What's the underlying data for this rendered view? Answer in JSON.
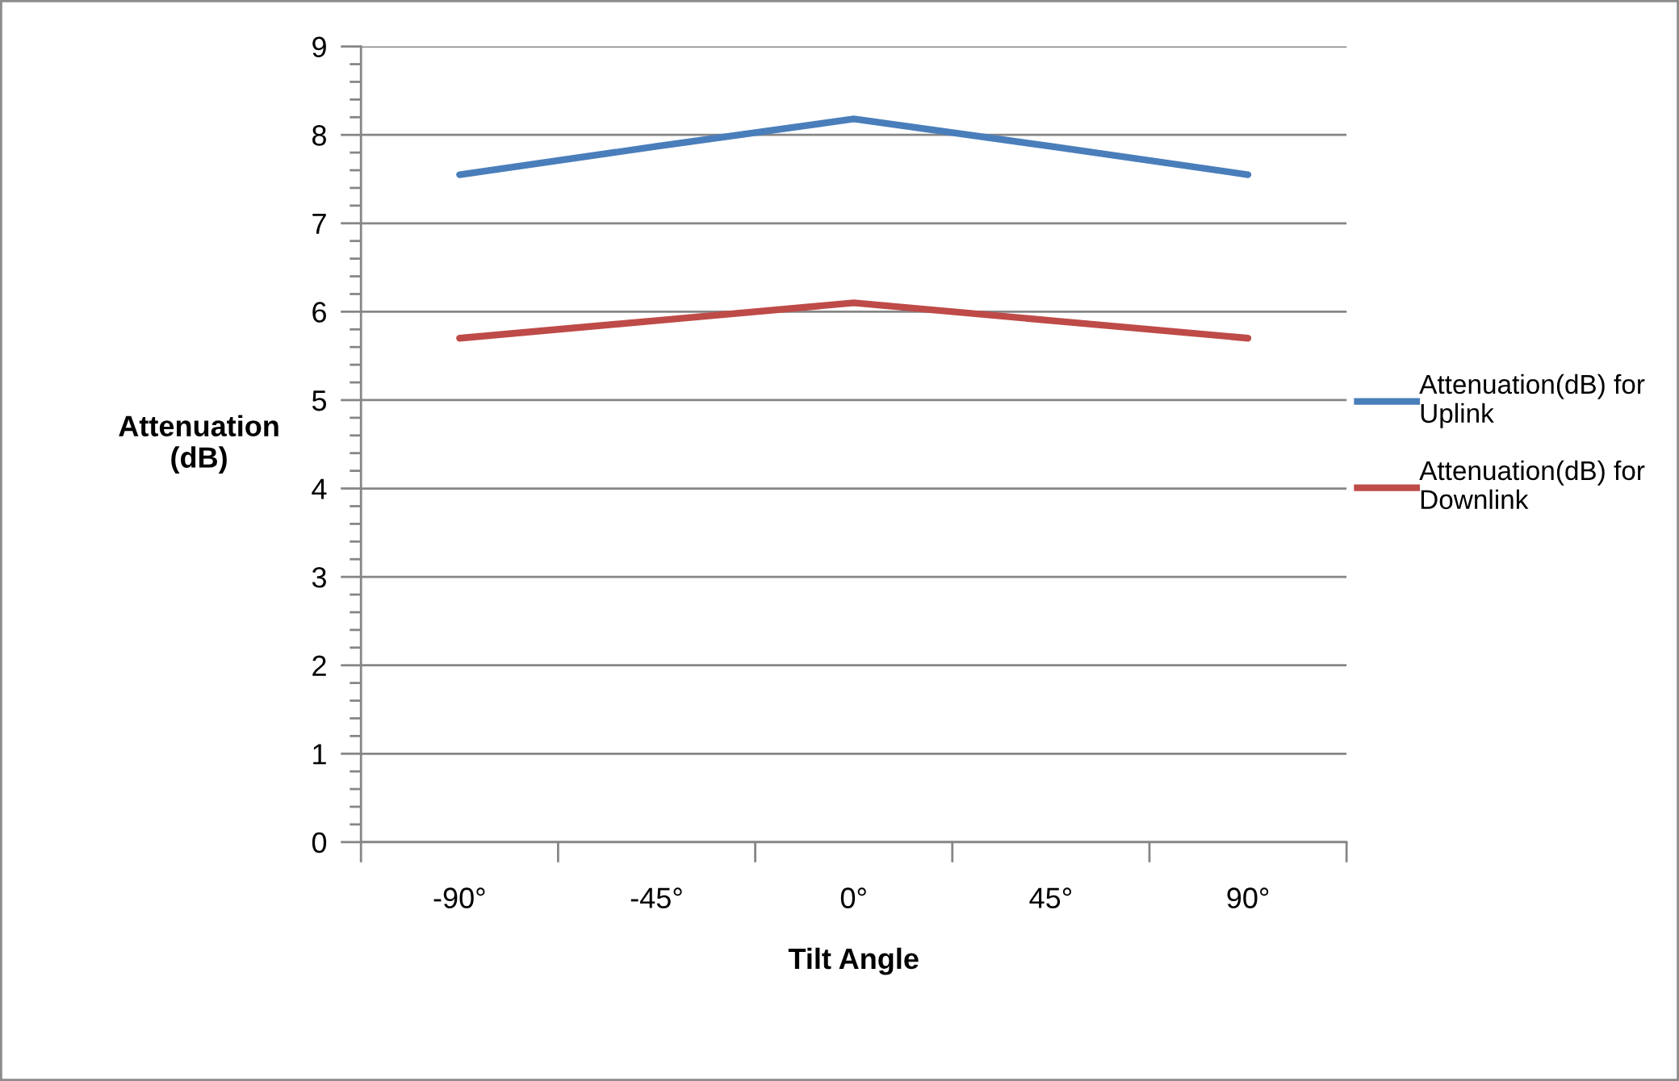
{
  "chart_data": {
    "type": "line",
    "xlabel": "Tilt Angle",
    "ylabel": "Attenuation\n(dB)",
    "categories": [
      "-90°",
      "-45°",
      "0°",
      "45°",
      "90°"
    ],
    "series": [
      {
        "name": "Attenuation(dB) for Uplink",
        "color": "#4a7ebb",
        "values": [
          7.55,
          7.87,
          8.18,
          7.87,
          7.55
        ]
      },
      {
        "name": "Attenuation(dB) for Downlink",
        "color": "#be4b48",
        "values": [
          5.7,
          5.9,
          6.1,
          5.9,
          5.7
        ]
      }
    ],
    "ylim": [
      0,
      9
    ],
    "yticks": [
      0,
      1,
      2,
      3,
      4,
      5,
      6,
      7,
      8,
      9
    ],
    "grid": "y",
    "legend": "right",
    "marker": "none",
    "line_style": "solid"
  }
}
